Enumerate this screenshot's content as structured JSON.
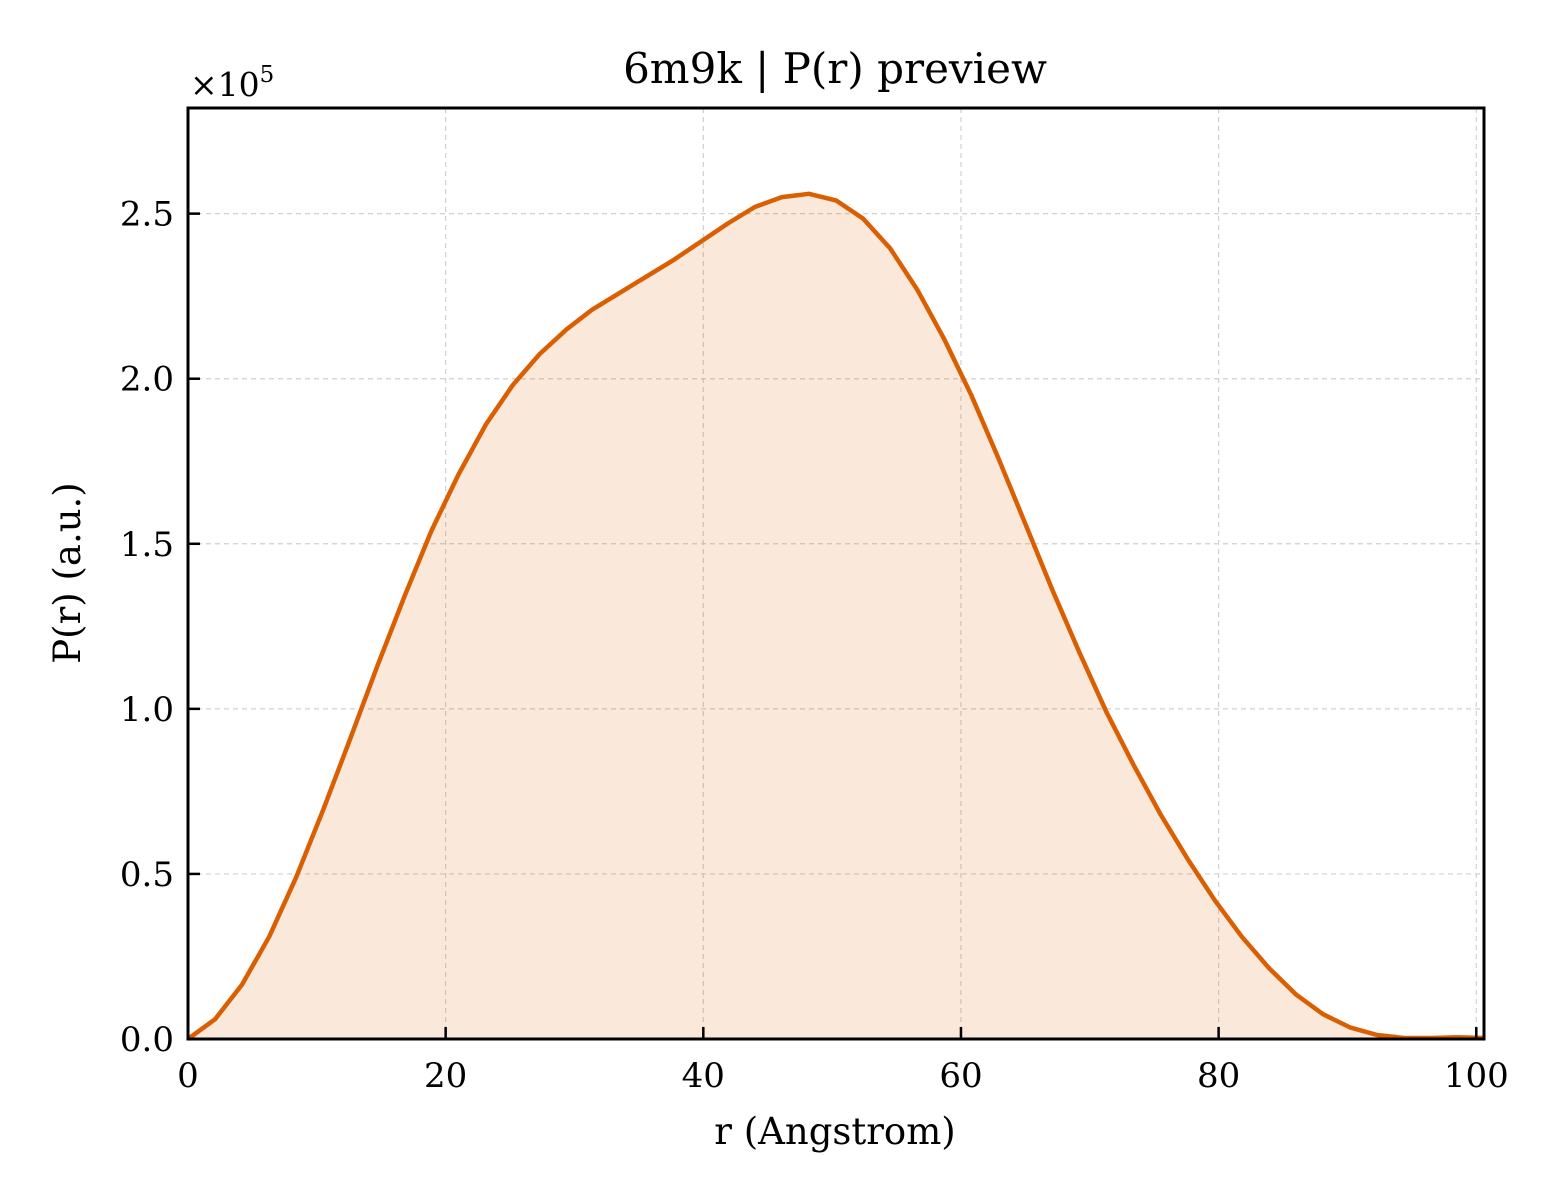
{
  "chart_data": {
    "type": "area",
    "title": "6m9k | P(r) preview",
    "xlabel": "r (Angstrom)",
    "ylabel": "P(r) (a.u.)",
    "y_multiplier_label": "×10",
    "y_multiplier_exponent": "5",
    "xlim": [
      0,
      100.6
    ],
    "ylim": [
      0,
      2.82
    ],
    "x_ticks": [
      0,
      20,
      40,
      60,
      80,
      100
    ],
    "x_tick_labels": [
      "0",
      "20",
      "40",
      "60",
      "80",
      "100"
    ],
    "y_ticks": [
      0,
      0.5,
      1.0,
      1.5,
      2.0,
      2.5
    ],
    "y_tick_labels": [
      "0.0",
      "0.5",
      "1.0",
      "1.5",
      "2.0",
      "2.5"
    ],
    "grid": true,
    "colors": {
      "line": "#d95f02",
      "fill": "#d95f02",
      "grid": "#d0d0d0",
      "axes": "#000000"
    },
    "series": [
      {
        "x": [
          0,
          2.1,
          4.2,
          6.3,
          8.4,
          10.5,
          12.6,
          14.7,
          16.8,
          18.9,
          21.0,
          23.1,
          25.2,
          27.3,
          29.4,
          31.4,
          33.5,
          35.6,
          37.7,
          39.8,
          41.9,
          44.0,
          46.1,
          48.2,
          50.3,
          52.4,
          54.5,
          56.6,
          58.7,
          60.8,
          62.9,
          65.0,
          67.1,
          69.2,
          71.3,
          73.4,
          75.5,
          77.6,
          79.7,
          81.8,
          83.9,
          86.0,
          88.1,
          90.2,
          92.3,
          94.4,
          96.5,
          98.6,
          100.6
        ],
        "y": [
          0.0,
          0.06,
          0.165,
          0.31,
          0.49,
          0.695,
          0.91,
          1.13,
          1.34,
          1.54,
          1.71,
          1.86,
          1.98,
          2.075,
          2.15,
          2.21,
          2.26,
          2.31,
          2.36,
          2.415,
          2.47,
          2.52,
          2.55,
          2.56,
          2.54,
          2.485,
          2.395,
          2.27,
          2.12,
          1.95,
          1.76,
          1.56,
          1.36,
          1.17,
          0.99,
          0.83,
          0.68,
          0.545,
          0.42,
          0.31,
          0.215,
          0.135,
          0.075,
          0.035,
          0.012,
          0.003,
          0.003,
          0.005,
          0.003
        ]
      }
    ]
  }
}
